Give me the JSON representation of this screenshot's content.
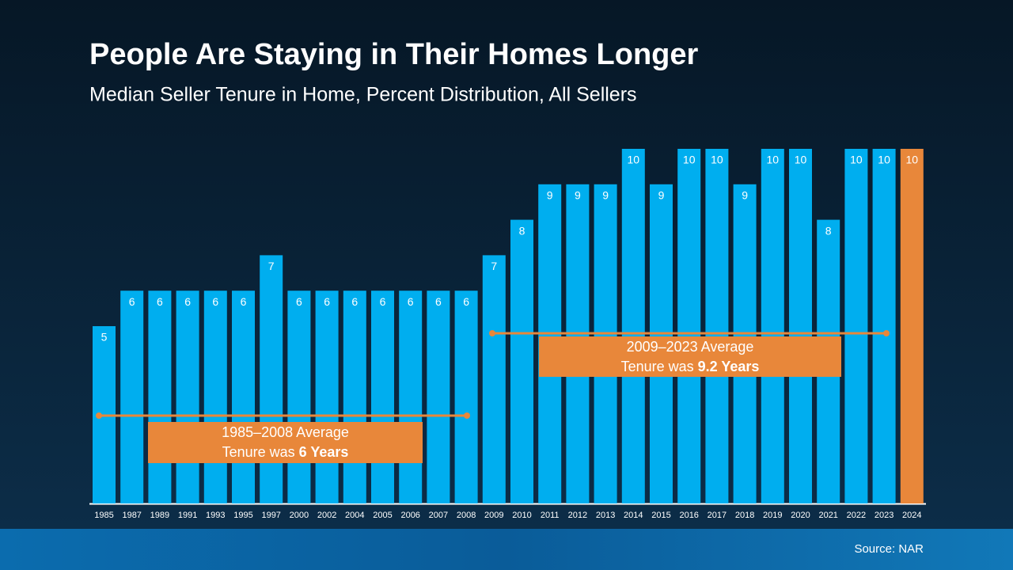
{
  "chart_data": {
    "type": "bar",
    "title": "People Are Staying in Their Homes Longer",
    "subtitle": "Median Seller Tenure in Home, Percent Distribution, All Sellers",
    "categories": [
      "1985",
      "1987",
      "1989",
      "1991",
      "1993",
      "1995",
      "1997",
      "2000",
      "2002",
      "2004",
      "2005",
      "2006",
      "2007",
      "2008",
      "2009",
      "2010",
      "2011",
      "2012",
      "2013",
      "2014",
      "2015",
      "2016",
      "2017",
      "2018",
      "2019",
      "2020",
      "2021",
      "2022",
      "2023",
      "2024"
    ],
    "values": [
      5,
      6,
      6,
      6,
      6,
      6,
      7,
      6,
      6,
      6,
      6,
      6,
      6,
      6,
      7,
      8,
      9,
      9,
      9,
      10,
      9,
      10,
      10,
      9,
      10,
      10,
      8,
      10,
      10,
      10
    ],
    "colors": [
      "#00aeef",
      "#00aeef",
      "#00aeef",
      "#00aeef",
      "#00aeef",
      "#00aeef",
      "#00aeef",
      "#00aeef",
      "#00aeef",
      "#00aeef",
      "#00aeef",
      "#00aeef",
      "#00aeef",
      "#00aeef",
      "#00aeef",
      "#00aeef",
      "#00aeef",
      "#00aeef",
      "#00aeef",
      "#00aeef",
      "#00aeef",
      "#00aeef",
      "#00aeef",
      "#00aeef",
      "#00aeef",
      "#00aeef",
      "#00aeef",
      "#00aeef",
      "#00aeef",
      "#e8873a"
    ],
    "ylim": [
      0,
      10
    ],
    "annotations": [
      {
        "line1": "1985–2008 Average",
        "line2": "Tenure was",
        "emphasis": "6 Years",
        "color": "#e8873a"
      },
      {
        "line1": "2009–2023 Average",
        "line2": "Tenure was",
        "emphasis": "9.2 Years",
        "color": "#e8873a"
      }
    ],
    "source": "Source: NAR"
  }
}
